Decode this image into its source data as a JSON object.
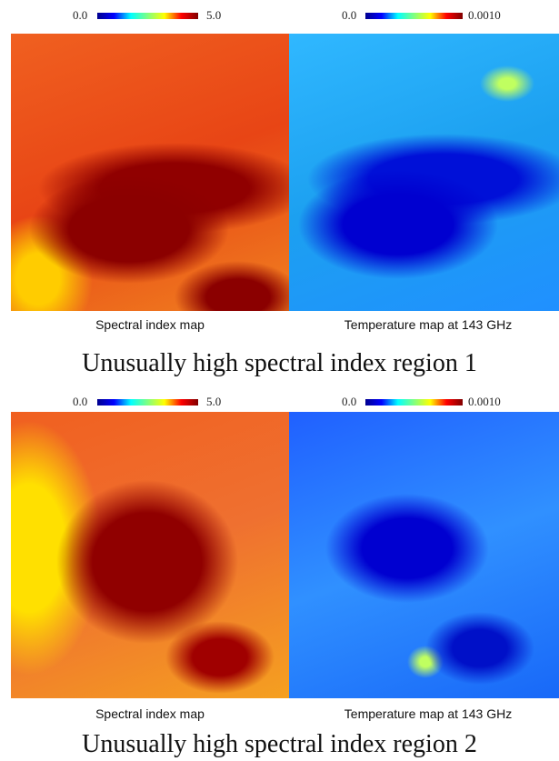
{
  "panels": [
    {
      "maps": [
        {
          "colorbar_min": "0.0",
          "colorbar_max": "5.0",
          "caption": "Spectral index map"
        },
        {
          "colorbar_min": "0.0",
          "colorbar_max": "0.0010",
          "caption": "Temperature map at 143 GHz"
        }
      ],
      "title": "Unusually high spectral index region 1"
    },
    {
      "maps": [
        {
          "colorbar_min": "0.0",
          "colorbar_max": "5.0",
          "caption": "Spectral index map"
        },
        {
          "colorbar_min": "0.0",
          "colorbar_max": "0.0010",
          "caption": "Temperature map at 143 GHz"
        }
      ],
      "title": "Unusually high spectral index region 2"
    }
  ]
}
